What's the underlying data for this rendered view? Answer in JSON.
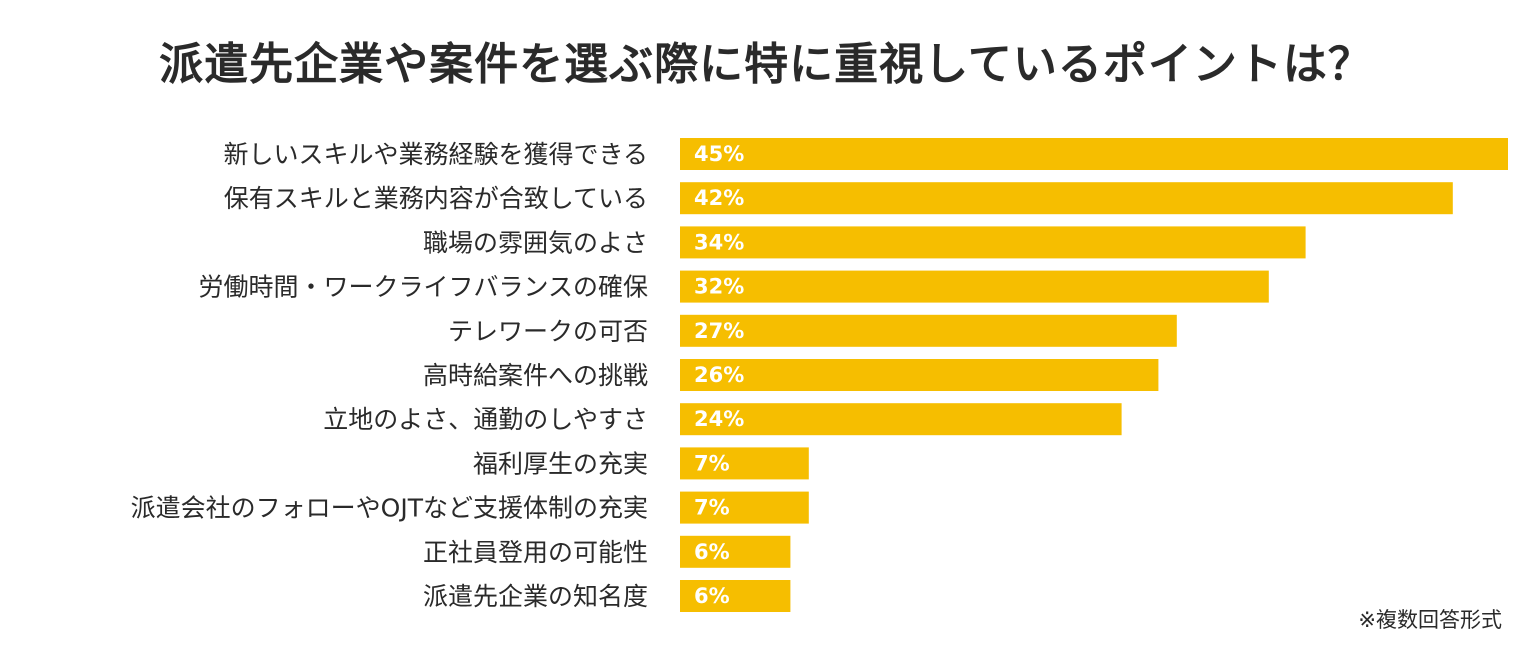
{
  "colors": {
    "bar": "#F6BE00",
    "text": "#2a2a2a",
    "value_text": "#ffffff"
  },
  "chart_data": {
    "type": "bar",
    "orientation": "horizontal",
    "title": "派遣先企業や案件を選ぶ際に特に重視しているポイントは？",
    "note": "※複数回答形式",
    "categories": [
      "新しいスキルや業務経験を獲得できる",
      "保有スキルと業務内容が合致している",
      "職場の雰囲気のよさ",
      "労働時間・ワークライフバランスの確保",
      "テレワークの可否",
      "高時給案件への挑戦",
      "立地のよさ、通勤のしやすさ",
      "福利厚生の充実",
      "派遣会社のフォローやOJTなど支援体制の充実",
      "正社員登用の可能性",
      "派遣先企業の知名度"
    ],
    "values": [
      45,
      42,
      34,
      32,
      27,
      26,
      24,
      7,
      7,
      6,
      6
    ],
    "value_labels": [
      "45%",
      "42%",
      "34%",
      "32%",
      "27%",
      "26%",
      "24%",
      "7%",
      "7%",
      "6%",
      "6%"
    ],
    "unit": "%",
    "xlim": [
      0,
      45
    ],
    "grid": false,
    "legend": "none"
  }
}
